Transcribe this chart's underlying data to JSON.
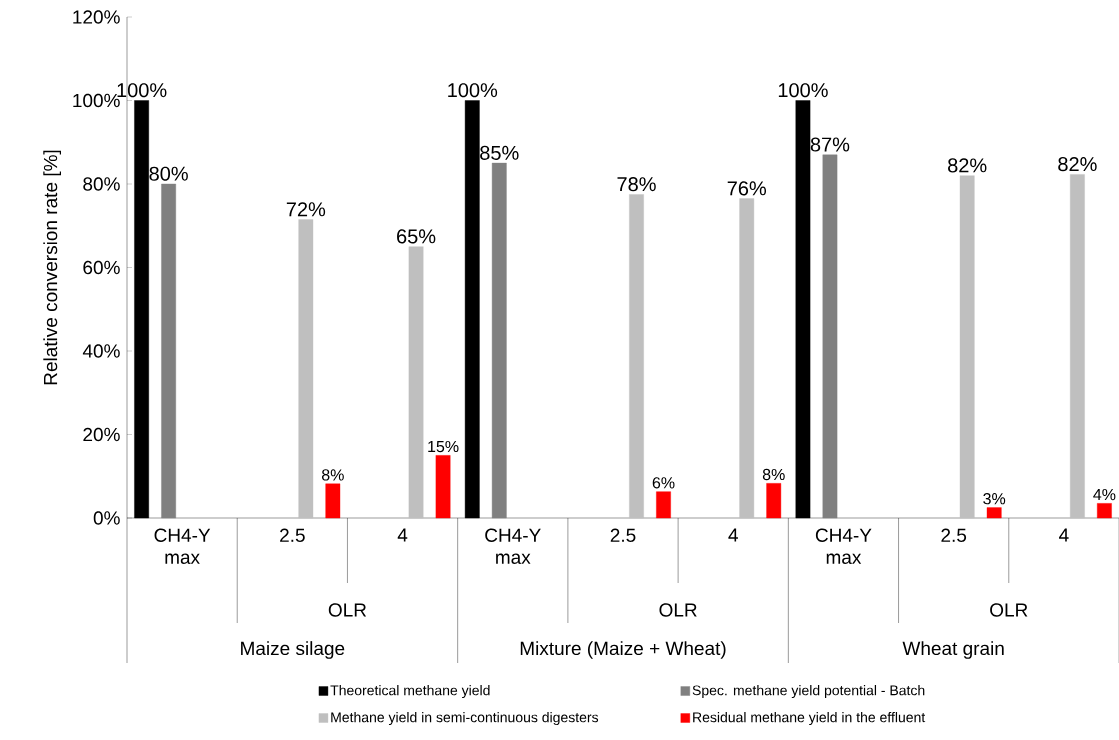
{
  "chart_data": {
    "type": "bar",
    "ylabel": "Relative conversion rate [%]",
    "categories": [
      "CH4-Y max",
      "2.5",
      "4",
      "CH4-Y max",
      "2.5",
      "4",
      "CH4-Y max",
      "2.5",
      "4"
    ],
    "annotations": [
      "OLR",
      "Maize silage",
      "OLR",
      "Mixture (Maize + Wheat)",
      "OLR",
      "Wheat grain"
    ],
    "series": [
      {
        "name": "Theoretical methane yield",
        "color": "#000000",
        "values": [
          100,
          null,
          null,
          100,
          null,
          null,
          100,
          null,
          null
        ],
        "value_labels": [
          "100%",
          null,
          null,
          "100%",
          null,
          null,
          "100%",
          null,
          null
        ]
      },
      {
        "name": "Spec. methane yield potential - Batch",
        "color": "#808080",
        "values": [
          80,
          null,
          null,
          85,
          null,
          null,
          87,
          null,
          null
        ],
        "value_labels": [
          "80%",
          null,
          null,
          "85%",
          null,
          null,
          "87%",
          null,
          null
        ]
      },
      {
        "name": "Methane yield in semi-continuous digesters",
        "color": "#bfbfbf",
        "values": [
          null,
          71.5,
          65,
          null,
          77.5,
          76.5,
          null,
          82,
          82.3
        ],
        "value_labels": [
          null,
          "72%",
          "65%",
          null,
          "78%",
          "76%",
          null,
          "82%",
          "82%"
        ]
      },
      {
        "name": "Residual methane yield in the effluent",
        "color": "#ff0000",
        "values": [
          null,
          8.2,
          15,
          null,
          6.3,
          8.3,
          null,
          2.5,
          3.5
        ],
        "value_labels": [
          null,
          "8%",
          "15%",
          null,
          "6%",
          "8%",
          null,
          "3%",
          "4%"
        ]
      }
    ],
    "ylim": [
      0,
      120
    ],
    "yticks": [
      {
        "value": 0,
        "label": "0%"
      },
      {
        "value": 20,
        "label": "20%"
      },
      {
        "value": 40,
        "label": "40%"
      },
      {
        "value": 60,
        "label": "60%"
      },
      {
        "value": 80,
        "label": "80%"
      },
      {
        "value": 100,
        "label": "100%"
      },
      {
        "value": 120,
        "label": "120%"
      }
    ],
    "grid": false,
    "legend": "bottom"
  }
}
